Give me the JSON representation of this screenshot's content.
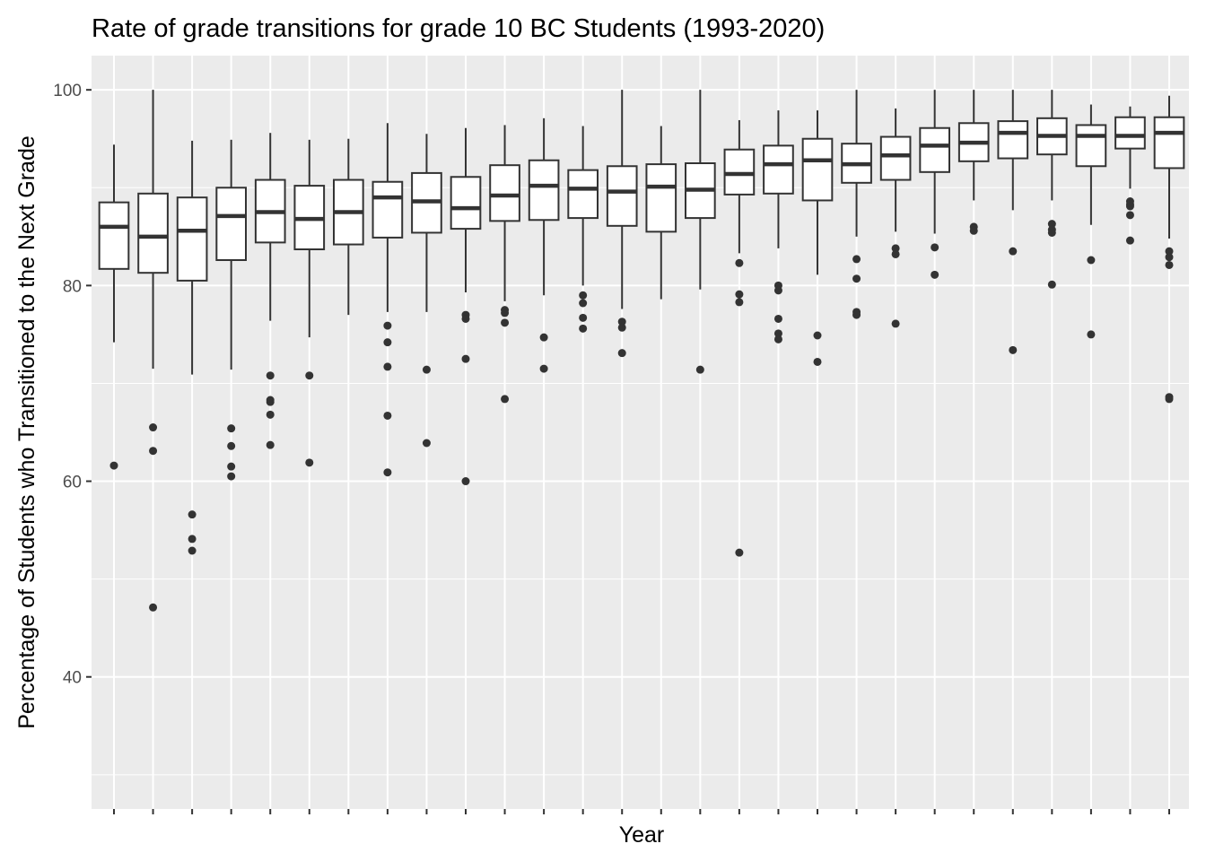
{
  "chart_data": {
    "type": "boxplot",
    "title": "Rate of grade transitions for grade 10 BC Students (1993-2020)",
    "xlabel": "Year",
    "ylabel": "Percentage of Students who Transitioned to the Next Grade",
    "ylim": [
      26.5,
      103.5
    ],
    "yticks": [
      40,
      60,
      80,
      100
    ],
    "grid": true,
    "x_tick_labels_shown": false,
    "colors": {
      "panel": "#ebebeb",
      "grid": "#ffffff",
      "box_line": "#333333",
      "box_fill": "#ffffff",
      "outlier": "#333333"
    },
    "series": [
      {
        "min": 74.2,
        "q1": 81.7,
        "median": 86.0,
        "q3": 88.5,
        "max": 94.4,
        "outliers": [
          61.6
        ]
      },
      {
        "min": 71.5,
        "q1": 81.3,
        "median": 85.0,
        "q3": 89.4,
        "max": 100.0,
        "outliers": [
          65.5,
          63.1,
          47.1
        ]
      },
      {
        "min": 70.9,
        "q1": 80.5,
        "median": 85.6,
        "q3": 89.0,
        "max": 94.8,
        "outliers": [
          56.6,
          54.1,
          52.9
        ]
      },
      {
        "min": 71.4,
        "q1": 82.6,
        "median": 87.1,
        "q3": 90.0,
        "max": 94.9,
        "outliers": [
          65.4,
          63.6,
          61.5,
          60.5
        ]
      },
      {
        "min": 76.4,
        "q1": 84.4,
        "median": 87.5,
        "q3": 90.8,
        "max": 95.6,
        "outliers": [
          70.8,
          68.3,
          68.1,
          66.8,
          63.7
        ]
      },
      {
        "min": 74.7,
        "q1": 83.7,
        "median": 86.8,
        "q3": 90.2,
        "max": 94.9,
        "outliers": [
          70.8,
          61.9
        ]
      },
      {
        "min": 77.0,
        "q1": 84.2,
        "median": 87.5,
        "q3": 90.8,
        "max": 95.0,
        "outliers": []
      },
      {
        "min": 77.3,
        "q1": 84.9,
        "median": 89.0,
        "q3": 90.6,
        "max": 96.6,
        "outliers": [
          75.9,
          74.2,
          71.7,
          66.7,
          60.9
        ]
      },
      {
        "min": 77.3,
        "q1": 85.4,
        "median": 88.6,
        "q3": 91.5,
        "max": 95.5,
        "outliers": [
          71.4,
          63.9
        ]
      },
      {
        "min": 79.3,
        "q1": 85.8,
        "median": 87.9,
        "q3": 91.1,
        "max": 96.1,
        "outliers": [
          77.0,
          76.6,
          72.5,
          60.0
        ]
      },
      {
        "min": 78.4,
        "q1": 86.6,
        "median": 89.2,
        "q3": 92.3,
        "max": 96.4,
        "outliers": [
          77.5,
          77.2,
          76.2,
          68.4
        ]
      },
      {
        "min": 79.0,
        "q1": 86.7,
        "median": 90.2,
        "q3": 92.8,
        "max": 97.1,
        "outliers": [
          74.7,
          71.5
        ]
      },
      {
        "min": 80.0,
        "q1": 86.9,
        "median": 89.9,
        "q3": 91.8,
        "max": 96.3,
        "outliers": [
          79.0,
          78.2,
          76.7,
          75.6
        ]
      },
      {
        "min": 77.6,
        "q1": 86.1,
        "median": 89.6,
        "q3": 92.2,
        "max": 100.0,
        "outliers": [
          76.3,
          75.7,
          73.1
        ]
      },
      {
        "min": 78.6,
        "q1": 85.5,
        "median": 90.1,
        "q3": 92.4,
        "max": 96.3,
        "outliers": []
      },
      {
        "min": 79.6,
        "q1": 86.9,
        "median": 89.8,
        "q3": 92.5,
        "max": 100.0,
        "outliers": [
          71.4
        ]
      },
      {
        "min": 83.3,
        "q1": 89.3,
        "median": 91.4,
        "q3": 93.9,
        "max": 96.9,
        "outliers": [
          82.3,
          79.1,
          78.3,
          52.7
        ]
      },
      {
        "min": 83.8,
        "q1": 89.4,
        "median": 92.4,
        "q3": 94.3,
        "max": 97.9,
        "outliers": [
          80.0,
          79.5,
          76.6,
          75.1,
          74.5
        ]
      },
      {
        "min": 81.1,
        "q1": 88.7,
        "median": 92.8,
        "q3": 95.0,
        "max": 97.9,
        "outliers": [
          74.9,
          72.2
        ]
      },
      {
        "min": 85.0,
        "q1": 90.5,
        "median": 92.4,
        "q3": 94.5,
        "max": 100.0,
        "outliers": [
          82.7,
          80.7,
          77.3,
          77.0
        ]
      },
      {
        "min": 85.5,
        "q1": 90.8,
        "median": 93.3,
        "q3": 95.2,
        "max": 98.1,
        "outliers": [
          83.8,
          83.2,
          76.1
        ]
      },
      {
        "min": 85.3,
        "q1": 91.6,
        "median": 94.3,
        "q3": 96.1,
        "max": 100.0,
        "outliers": [
          83.9,
          81.1
        ]
      },
      {
        "min": 88.7,
        "q1": 92.7,
        "median": 94.6,
        "q3": 96.6,
        "max": 100.0,
        "outliers": [
          86.0,
          85.6
        ]
      },
      {
        "min": 87.7,
        "q1": 93.0,
        "median": 95.6,
        "q3": 96.8,
        "max": 100.0,
        "outliers": [
          83.5,
          73.4
        ]
      },
      {
        "min": 88.7,
        "q1": 93.4,
        "median": 95.3,
        "q3": 97.1,
        "max": 100.0,
        "outliers": [
          86.3,
          85.7,
          85.4,
          80.1
        ]
      },
      {
        "min": 86.2,
        "q1": 92.2,
        "median": 95.3,
        "q3": 96.4,
        "max": 98.5,
        "outliers": [
          82.6,
          75.0
        ]
      },
      {
        "min": 89.9,
        "q1": 94.0,
        "median": 95.3,
        "q3": 97.2,
        "max": 98.3,
        "outliers": [
          88.6,
          88.3,
          88.1,
          87.2,
          84.6
        ]
      },
      {
        "min": 84.8,
        "q1": 92.0,
        "median": 95.6,
        "q3": 97.2,
        "max": 99.4,
        "outliers": [
          83.5,
          82.9,
          82.1,
          68.6,
          68.4
        ]
      }
    ]
  }
}
